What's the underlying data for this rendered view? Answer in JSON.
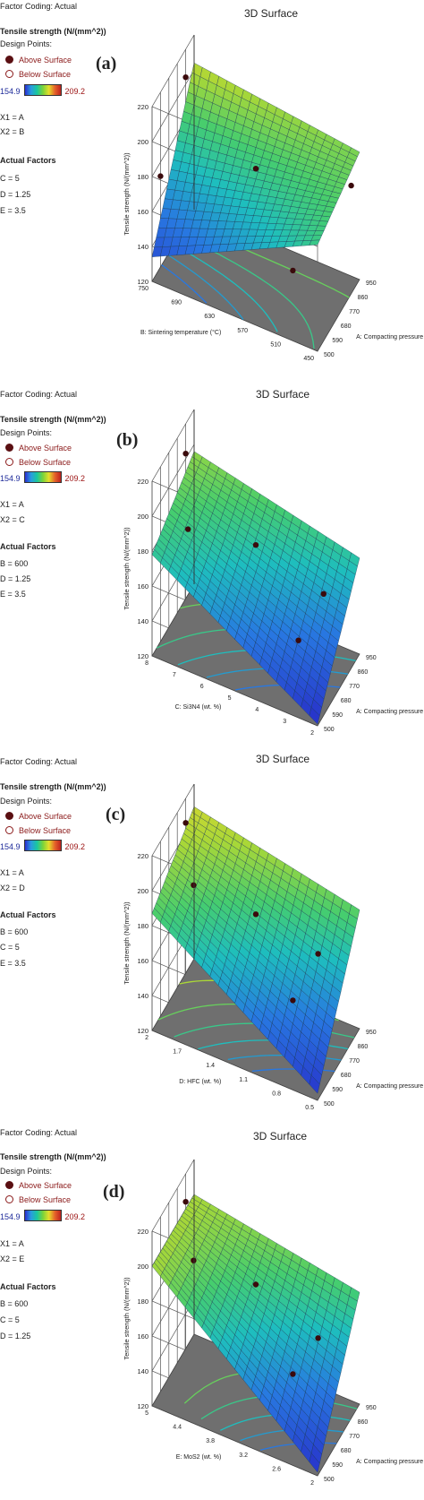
{
  "panels": [
    {
      "label": "(a)",
      "factor_coding": "Factor Coding: Actual",
      "title": "3D Surface",
      "response": "Tensile strength (N/(mm^2))",
      "design_points": "Design Points:",
      "above": "Above Surface",
      "below": "Below Surface",
      "scale_min": "154.9",
      "scale_max": "209.2",
      "x1": "X1 = A",
      "x2": "X2 = B",
      "actual_factors": "Actual Factors",
      "factors": [
        "C = 5",
        "D = 1.25",
        "E = 3.5"
      ],
      "zlabel": "Tensile strength (N/(mm^2))",
      "xlabel": "A: Compacting pressure (MPa)",
      "ylabel": "B: Sintering temperature (°C)",
      "zticks": [
        "220",
        "200",
        "180",
        "160",
        "140",
        "120"
      ],
      "xticks": [
        "500",
        "590",
        "680",
        "770",
        "860",
        "950"
      ],
      "yticks": [
        "450",
        "510",
        "570",
        "630",
        "690",
        "750"
      ]
    },
    {
      "label": "(b)",
      "factor_coding": "Factor Coding: Actual",
      "title": "3D Surface",
      "response": "Tensile strength (N/(mm^2))",
      "design_points": "Design Points:",
      "above": "Above Surface",
      "below": "Below Surface",
      "scale_min": "154.9",
      "scale_max": "209.2",
      "x1": "X1 = A",
      "x2": "X2 = C",
      "actual_factors": "Actual Factors",
      "factors": [
        "B = 600",
        "D = 1.25",
        "E = 3.5"
      ],
      "zlabel": "Tensile strength (N/(mm^2))",
      "xlabel": "A: Compacting pressure (MPa)",
      "ylabel": "C: Si3N4 (wt. %)",
      "zticks": [
        "220",
        "200",
        "180",
        "160",
        "140",
        "120"
      ],
      "xticks": [
        "500",
        "590",
        "680",
        "770",
        "860",
        "950"
      ],
      "yticks": [
        "2",
        "3",
        "4",
        "5",
        "6",
        "7",
        "8"
      ]
    },
    {
      "label": "(c)",
      "factor_coding": "Factor Coding: Actual",
      "title": "3D Surface",
      "response": "Tensile strength (N/(mm^2))",
      "design_points": "Design Points:",
      "above": "Above Surface",
      "below": "Below Surface",
      "scale_min": "154.9",
      "scale_max": "209.2",
      "x1": "X1 = A",
      "x2": "X2 = D",
      "actual_factors": "Actual Factors",
      "factors": [
        "B = 600",
        "C = 5",
        "E = 3.5"
      ],
      "zlabel": "Tensile strength (N/(mm^2))",
      "xlabel": "A: Compacting pressure (MPa)",
      "ylabel": "D: HFC (wt. %)",
      "zticks": [
        "220",
        "200",
        "180",
        "160",
        "140",
        "120"
      ],
      "xticks": [
        "500",
        "590",
        "680",
        "770",
        "860",
        "950"
      ],
      "yticks": [
        "0.5",
        "0.8",
        "1.1",
        "1.4",
        "1.7",
        "2"
      ]
    },
    {
      "label": "(d)",
      "factor_coding": "Factor Coding: Actual",
      "title": "3D Surface",
      "response": "Tensile strength (N/(mm^2))",
      "design_points": "Design Points:",
      "above": "Above Surface",
      "below": "Below Surface",
      "scale_min": "154.9",
      "scale_max": "209.2",
      "x1": "X1 = A",
      "x2": "X2 = E",
      "actual_factors": "Actual Factors",
      "factors": [
        "B = 600",
        "C = 5",
        "D = 1.25"
      ],
      "zlabel": "Tensile strength (N/(mm^2))",
      "xlabel": "A: Compacting pressure (MPa)",
      "ylabel": "E: MoS2 (wt. %)",
      "zticks": [
        "220",
        "200",
        "180",
        "160",
        "140",
        "120"
      ],
      "xticks": [
        "500",
        "590",
        "680",
        "770",
        "860",
        "950"
      ],
      "yticks": [
        "2",
        "2.6",
        "3.2",
        "3.8",
        "4.4",
        "5"
      ]
    }
  ],
  "chart_data": [
    {
      "type": "surface",
      "title": "3D Surface",
      "xlabel": "A: Compacting pressure (MPa)",
      "ylabel": "B: Sintering temperature (°C)",
      "zlabel": "Tensile strength (N/(mm^2))",
      "xlim": [
        500,
        950
      ],
      "ylim": [
        450,
        750
      ],
      "zlim": [
        120,
        220
      ],
      "corners_z": {
        "x_min_y_min": 181,
        "x_max_y_min": 193,
        "x_min_y_max": 134,
        "x_max_y_max": 204
      },
      "design_points": [
        {
          "x": 860,
          "y": 750,
          "z": 204,
          "position": "above"
        },
        {
          "x": 725,
          "y": 600,
          "z": 184,
          "position": "above"
        },
        {
          "x": 590,
          "y": 750,
          "z": 172,
          "position": "above"
        },
        {
          "x": 860,
          "y": 450,
          "z": 182,
          "position": "above"
        },
        {
          "x": 590,
          "y": 510,
          "z": 150,
          "position": "above"
        }
      ],
      "colorbar": {
        "min": 154.9,
        "max": 209.2
      }
    },
    {
      "type": "surface",
      "title": "3D Surface",
      "xlabel": "A: Compacting pressure (MPa)",
      "ylabel": "C: Si3N4 (wt. %)",
      "zlabel": "Tensile strength (N/(mm^2))",
      "xlim": [
        500,
        950
      ],
      "ylim": [
        2,
        8
      ],
      "zlim": [
        120,
        220
      ],
      "corners_z": {
        "x_min_y_min": 121,
        "x_max_y_min": 175,
        "x_min_y_max": 178,
        "x_max_y_max": 196
      },
      "design_points": [
        {
          "x": 860,
          "y": 8,
          "z": 203,
          "position": "above"
        },
        {
          "x": 590,
          "y": 7,
          "z": 191,
          "position": "above"
        },
        {
          "x": 725,
          "y": 5,
          "z": 183,
          "position": "above"
        },
        {
          "x": 860,
          "y": 3,
          "z": 156,
          "position": "above"
        },
        {
          "x": 590,
          "y": 3,
          "z": 154,
          "position": "above"
        }
      ],
      "colorbar": {
        "min": 154.9,
        "max": 209.2
      }
    },
    {
      "type": "surface",
      "title": "3D Surface",
      "xlabel": "A: Compacting pressure (MPa)",
      "ylabel": "D: HFC (wt. %)",
      "zlabel": "Tensile strength (N/(mm^2))",
      "xlim": [
        500,
        950
      ],
      "ylim": [
        0.5,
        2
      ],
      "zlim": [
        120,
        220
      ],
      "corners_z": {
        "x_min_y_min": 124,
        "x_max_y_min": 188,
        "x_min_y_max": 187,
        "x_max_y_max": 207
      },
      "design_points": [
        {
          "x": 860,
          "y": 2,
          "z": 206,
          "position": "above"
        },
        {
          "x": 590,
          "y": 1.7,
          "z": 203,
          "position": "above"
        },
        {
          "x": 725,
          "y": 1.25,
          "z": 186,
          "position": "above"
        },
        {
          "x": 860,
          "y": 0.8,
          "z": 163,
          "position": "above"
        },
        {
          "x": 590,
          "y": 0.8,
          "z": 161,
          "position": "above"
        }
      ],
      "colorbar": {
        "min": 154.9,
        "max": 209.2
      }
    },
    {
      "type": "surface",
      "title": "3D Surface",
      "xlabel": "A: Compacting pressure (MPa)",
      "ylabel": "E: MoS2 (wt. %)",
      "zlabel": "Tensile strength (N/(mm^2))",
      "xlim": [
        500,
        950
      ],
      "ylim": [
        2,
        5
      ],
      "zlim": [
        120,
        220
      ],
      "corners_z": {
        "x_min_y_min": 122,
        "x_max_y_min": 184,
        "x_min_y_max": 200,
        "x_max_y_max": 200
      },
      "design_points": [
        {
          "x": 860,
          "y": 5,
          "z": 204,
          "position": "above"
        },
        {
          "x": 590,
          "y": 4.4,
          "z": 203,
          "position": "above"
        },
        {
          "x": 725,
          "y": 3.5,
          "z": 189,
          "position": "above"
        },
        {
          "x": 860,
          "y": 2.6,
          "z": 158,
          "position": "above"
        },
        {
          "x": 590,
          "y": 2.6,
          "z": 162,
          "position": "above"
        }
      ],
      "colorbar": {
        "min": 154.9,
        "max": 209.2
      }
    }
  ]
}
